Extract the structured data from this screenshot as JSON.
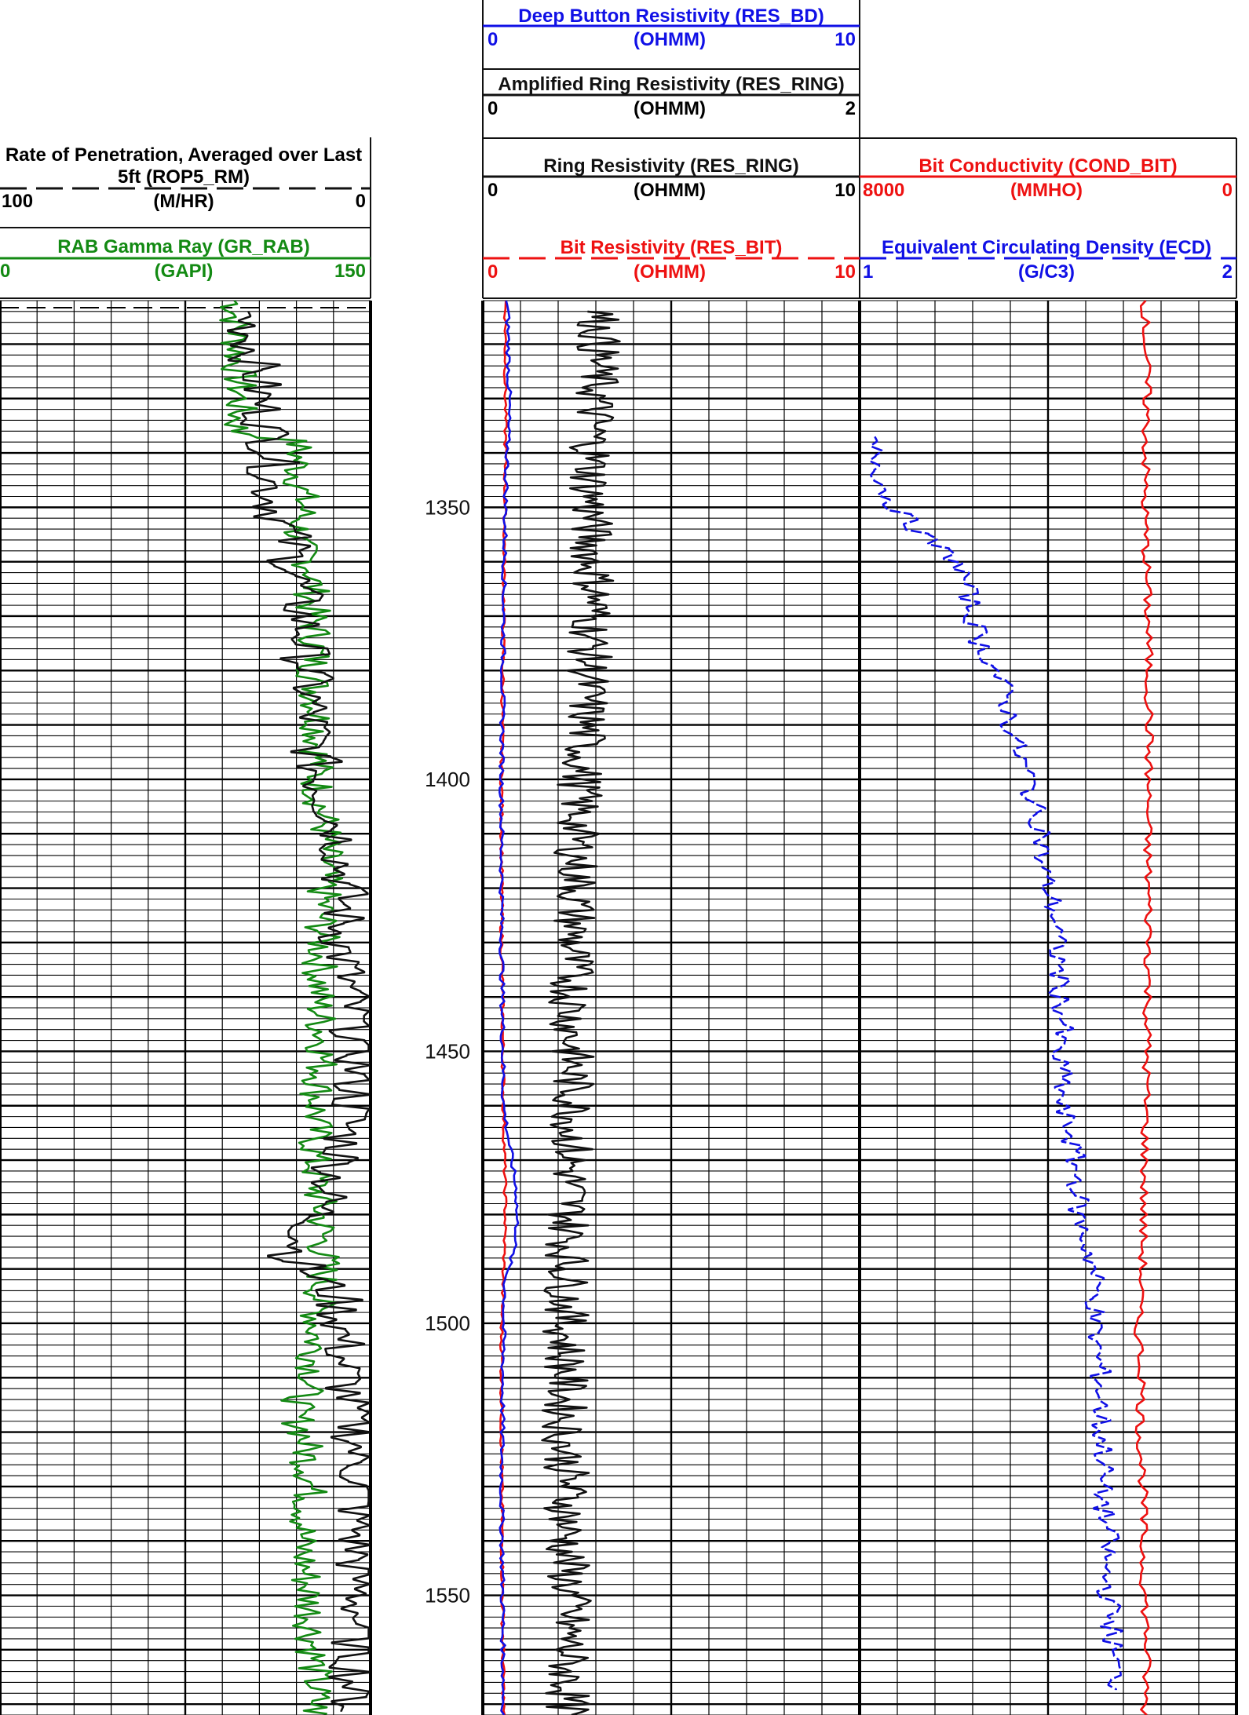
{
  "colors": {
    "blue": "#1010e6",
    "red": "#ee1111",
    "green": "#138a13",
    "black": "#111111",
    "grid": "#000000"
  },
  "headers": {
    "rop": {
      "title_line1": "Rate of Penetration, Averaged over Last",
      "title_line2": "5ft (ROP5_RM)",
      "left": "100",
      "unit": "(M/HR)",
      "right": "0",
      "color": "#111111",
      "line_style": "dashed"
    },
    "gr": {
      "title": "RAB Gamma Ray (GR_RAB)",
      "left": "0",
      "unit": "(GAPI)",
      "right": "150",
      "color": "#138a13",
      "line_style": "solid"
    },
    "res_bd": {
      "title": "Deep Button Resistivity (RES_BD)",
      "left": "0",
      "unit": "(OHMM)",
      "right": "10",
      "color": "#1010e6",
      "line_style": "solid"
    },
    "res_ring_amp": {
      "title": "Amplified Ring Resistivity (RES_RING)",
      "left": "0",
      "unit": "(OHMM)",
      "right": "2",
      "color": "#111111",
      "line_style": "solid"
    },
    "res_ring": {
      "title": "Ring Resistivity (RES_RING)",
      "left": "0",
      "unit": "(OHMM)",
      "right": "10",
      "color": "#111111",
      "line_style": "solid"
    },
    "res_bit": {
      "title": "Bit Resistivity (RES_BIT)",
      "left": "0",
      "unit": "(OHMM)",
      "right": "10",
      "color": "#ee1111",
      "line_style": "dashed"
    },
    "cond_bit": {
      "title": "Bit Conductivity (COND_BIT)",
      "left": "8000",
      "unit": "(MMHO)",
      "right": "0",
      "color": "#ee1111",
      "line_style": "solid"
    },
    "ecd": {
      "title": "Equivalent Circulating Density (ECD)",
      "left": "1",
      "unit": "(G/C3)",
      "right": "2",
      "color": "#1010e6",
      "line_style": "dashed"
    }
  },
  "chart_data": {
    "type": "line",
    "depth_range": [
      1312,
      1572
    ],
    "depth_ticks": [
      "1350",
      "1400",
      "1450",
      "1500",
      "1550"
    ],
    "series": [
      {
        "name": "GR_RAB",
        "scale": [
          0,
          150
        ],
        "color": "#138a13",
        "points": [
          [
            1312,
            95
          ],
          [
            1320,
            96
          ],
          [
            1330,
            97
          ],
          [
            1336,
            96
          ],
          [
            1338,
            120
          ],
          [
            1344,
            121
          ],
          [
            1350,
            123
          ],
          [
            1356,
            120
          ],
          [
            1362,
            127
          ],
          [
            1368,
            126
          ],
          [
            1375,
            128
          ],
          [
            1380,
            127
          ],
          [
            1390,
            129
          ],
          [
            1400,
            128
          ],
          [
            1410,
            132
          ],
          [
            1420,
            131
          ],
          [
            1430,
            130
          ],
          [
            1440,
            129
          ],
          [
            1450,
            131
          ],
          [
            1460,
            128
          ],
          [
            1470,
            127
          ],
          [
            1480,
            130
          ],
          [
            1490,
            131
          ],
          [
            1500,
            128
          ],
          [
            1510,
            127
          ],
          [
            1516,
            119
          ],
          [
            1520,
            123
          ],
          [
            1530,
            126
          ],
          [
            1540,
            122
          ],
          [
            1550,
            125
          ],
          [
            1560,
            127
          ],
          [
            1572,
            128
          ]
        ]
      },
      {
        "name": "ROP5_RM",
        "scale": [
          100,
          0
        ],
        "color": "#111111",
        "points": [
          [
            1314,
            34
          ],
          [
            1320,
            32
          ],
          [
            1330,
            30
          ],
          [
            1340,
            26
          ],
          [
            1346,
            27
          ],
          [
            1350,
            26
          ],
          [
            1356,
            22
          ],
          [
            1364,
            20
          ],
          [
            1372,
            18
          ],
          [
            1380,
            17
          ],
          [
            1390,
            16
          ],
          [
            1400,
            14
          ],
          [
            1410,
            8
          ],
          [
            1420,
            7
          ],
          [
            1430,
            8
          ],
          [
            1440,
            6
          ],
          [
            1450,
            3
          ],
          [
            1460,
            5
          ],
          [
            1470,
            8
          ],
          [
            1480,
            14
          ],
          [
            1488,
            21
          ],
          [
            1495,
            9
          ],
          [
            1500,
            8
          ],
          [
            1510,
            7
          ],
          [
            1520,
            4
          ],
          [
            1530,
            3
          ],
          [
            1540,
            4
          ],
          [
            1550,
            3
          ],
          [
            1560,
            4
          ],
          [
            1572,
            5
          ]
        ]
      },
      {
        "name": "RES_BIT",
        "scale": [
          0,
          10
        ],
        "color": "#ee1111",
        "points": [
          [
            1312,
            0.6
          ],
          [
            1340,
            0.6
          ],
          [
            1370,
            0.55
          ],
          [
            1400,
            0.5
          ],
          [
            1430,
            0.5
          ],
          [
            1460,
            0.55
          ],
          [
            1480,
            0.6
          ],
          [
            1500,
            0.5
          ],
          [
            1530,
            0.5
          ],
          [
            1572,
            0.55
          ]
        ]
      },
      {
        "name": "RES_BD",
        "scale": [
          0,
          10
        ],
        "color": "#1010e6",
        "points": [
          [
            1312,
            0.65
          ],
          [
            1330,
            0.7
          ],
          [
            1350,
            0.6
          ],
          [
            1370,
            0.55
          ],
          [
            1400,
            0.5
          ],
          [
            1430,
            0.5
          ],
          [
            1460,
            0.55
          ],
          [
            1476,
            0.9
          ],
          [
            1484,
            0.9
          ],
          [
            1492,
            0.6
          ],
          [
            1500,
            0.55
          ],
          [
            1530,
            0.5
          ],
          [
            1572,
            0.55
          ]
        ]
      },
      {
        "name": "RES_RING",
        "scale": [
          0,
          2
        ],
        "color": "#111111",
        "points": [
          [
            1314,
            0.62
          ],
          [
            1330,
            0.6
          ],
          [
            1340,
            0.58
          ],
          [
            1350,
            0.57
          ],
          [
            1360,
            0.58
          ],
          [
            1366,
            0.6
          ],
          [
            1370,
            0.58
          ],
          [
            1380,
            0.56
          ],
          [
            1390,
            0.55
          ],
          [
            1400,
            0.52
          ],
          [
            1410,
            0.5
          ],
          [
            1420,
            0.5
          ],
          [
            1430,
            0.48
          ],
          [
            1440,
            0.47
          ],
          [
            1450,
            0.47
          ],
          [
            1460,
            0.48
          ],
          [
            1470,
            0.47
          ],
          [
            1480,
            0.46
          ],
          [
            1490,
            0.45
          ],
          [
            1500,
            0.44
          ],
          [
            1510,
            0.44
          ],
          [
            1520,
            0.43
          ],
          [
            1530,
            0.45
          ],
          [
            1540,
            0.44
          ],
          [
            1550,
            0.46
          ],
          [
            1560,
            0.45
          ],
          [
            1572,
            0.45
          ]
        ]
      },
      {
        "name": "ECD",
        "scale": [
          1,
          2
        ],
        "color": "#1010e6",
        "points": [
          [
            1337,
            1.02
          ],
          [
            1342,
            1.05
          ],
          [
            1348,
            1.07
          ],
          [
            1352,
            1.12
          ],
          [
            1356,
            1.18
          ],
          [
            1360,
            1.26
          ],
          [
            1364,
            1.28
          ],
          [
            1370,
            1.3
          ],
          [
            1375,
            1.32
          ],
          [
            1380,
            1.36
          ],
          [
            1385,
            1.39
          ],
          [
            1390,
            1.4
          ],
          [
            1395,
            1.42
          ],
          [
            1400,
            1.45
          ],
          [
            1405,
            1.46
          ],
          [
            1410,
            1.49
          ],
          [
            1415,
            1.48
          ],
          [
            1420,
            1.5
          ],
          [
            1425,
            1.52
          ],
          [
            1430,
            1.52
          ],
          [
            1435,
            1.53
          ],
          [
            1440,
            1.53
          ],
          [
            1445,
            1.54
          ],
          [
            1450,
            1.52
          ],
          [
            1455,
            1.54
          ],
          [
            1460,
            1.53
          ],
          [
            1465,
            1.56
          ],
          [
            1470,
            1.57
          ],
          [
            1475,
            1.58
          ],
          [
            1480,
            1.58
          ],
          [
            1485,
            1.6
          ],
          [
            1490,
            1.62
          ],
          [
            1495,
            1.63
          ],
          [
            1500,
            1.62
          ],
          [
            1505,
            1.63
          ],
          [
            1510,
            1.64
          ],
          [
            1515,
            1.64
          ],
          [
            1520,
            1.64
          ],
          [
            1525,
            1.65
          ],
          [
            1530,
            1.64
          ],
          [
            1535,
            1.65
          ],
          [
            1540,
            1.66
          ],
          [
            1545,
            1.65
          ],
          [
            1550,
            1.66
          ],
          [
            1555,
            1.67
          ],
          [
            1560,
            1.67
          ],
          [
            1565,
            1.68
          ],
          [
            1568,
            1.69
          ]
        ]
      },
      {
        "name": "COND_BIT",
        "scale": [
          8000,
          0
        ],
        "color": "#ee1111",
        "points": [
          [
            1312,
            1940
          ],
          [
            1330,
            1900
          ],
          [
            1350,
            1950
          ],
          [
            1370,
            1880
          ],
          [
            1390,
            1850
          ],
          [
            1410,
            1890
          ],
          [
            1430,
            1860
          ],
          [
            1450,
            1900
          ],
          [
            1470,
            1950
          ],
          [
            1490,
            2000
          ],
          [
            1500,
            2100
          ],
          [
            1510,
            2000
          ],
          [
            1520,
            2050
          ],
          [
            1530,
            1980
          ],
          [
            1540,
            1990
          ],
          [
            1550,
            1950
          ],
          [
            1560,
            1900
          ],
          [
            1572,
            1950
          ]
        ]
      }
    ]
  }
}
